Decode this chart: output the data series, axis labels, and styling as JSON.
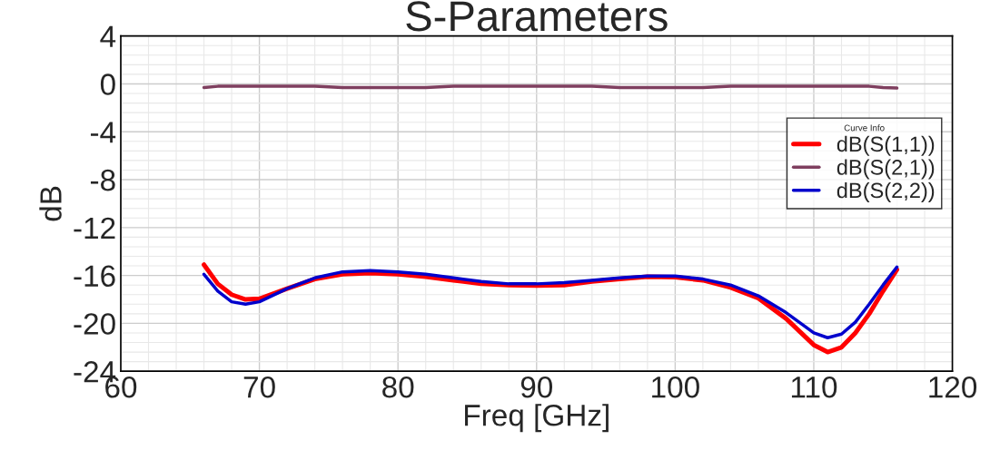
{
  "chart_data": {
    "type": "line",
    "title": "S-Parameters",
    "xlabel": "Freq [GHz]",
    "ylabel": "dB",
    "legend_title": "Curve Info",
    "x": [
      66,
      67,
      68,
      69,
      70,
      72,
      74,
      76,
      78,
      80,
      82,
      84,
      86,
      88,
      90,
      92,
      94,
      96,
      98,
      100,
      102,
      104,
      106,
      108,
      110,
      111,
      112,
      113,
      114,
      115,
      116
    ],
    "series": [
      {
        "name": "dB(S(1,1))",
        "color": "#ff0000",
        "values": [
          -15.1,
          -16.7,
          -17.6,
          -18.0,
          -17.95,
          -17.1,
          -16.3,
          -15.9,
          -15.8,
          -15.9,
          -16.1,
          -16.4,
          -16.7,
          -16.8,
          -16.85,
          -16.8,
          -16.5,
          -16.3,
          -16.1,
          -16.15,
          -16.4,
          -17.0,
          -17.9,
          -19.6,
          -21.8,
          -22.4,
          -22.0,
          -20.8,
          -19.2,
          -17.3,
          -15.5
        ]
      },
      {
        "name": "dB(S(2,1))",
        "color": "#7f3f5f",
        "values": [
          -0.3,
          -0.2,
          -0.2,
          -0.2,
          -0.2,
          -0.2,
          -0.2,
          -0.3,
          -0.3,
          -0.3,
          -0.3,
          -0.2,
          -0.2,
          -0.2,
          -0.2,
          -0.2,
          -0.2,
          -0.3,
          -0.3,
          -0.3,
          -0.3,
          -0.2,
          -0.2,
          -0.2,
          -0.2,
          -0.2,
          -0.2,
          -0.2,
          -0.2,
          -0.3,
          -0.35
        ]
      },
      {
        "name": "dB(S(2,2))",
        "color": "#0000cc",
        "values": [
          -15.9,
          -17.3,
          -18.2,
          -18.4,
          -18.2,
          -17.1,
          -16.2,
          -15.7,
          -15.6,
          -15.7,
          -15.9,
          -16.2,
          -16.5,
          -16.7,
          -16.7,
          -16.6,
          -16.4,
          -16.2,
          -16.05,
          -16.05,
          -16.3,
          -16.8,
          -17.7,
          -19.1,
          -20.8,
          -21.2,
          -20.9,
          -19.9,
          -18.4,
          -16.8,
          -15.3
        ]
      }
    ],
    "xlim": [
      60,
      120
    ],
    "xticks": [
      60,
      70,
      80,
      90,
      100,
      110,
      120
    ],
    "ylim": [
      -24,
      4
    ],
    "yticks": [
      -24,
      -20,
      -16,
      -12,
      -8,
      -4,
      0,
      4
    ],
    "grid": true,
    "legend": "right",
    "marker": "none",
    "line_style": "solid"
  }
}
